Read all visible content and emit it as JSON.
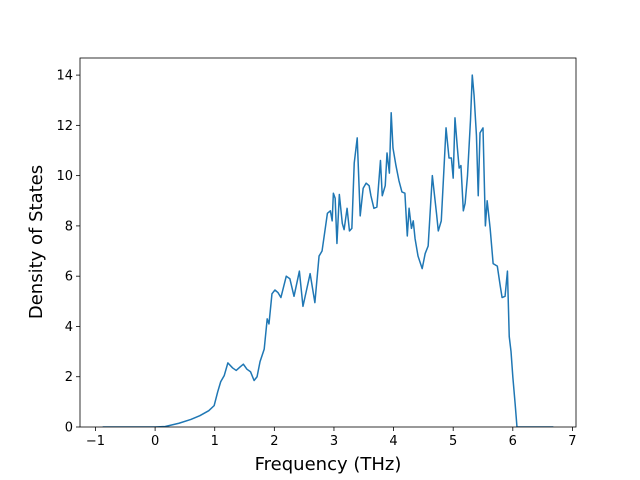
{
  "chart_data": {
    "type": "line",
    "xlabel": "Frequency (THz)",
    "ylabel": "Density of States",
    "xlim": [
      -1.26,
      7.06
    ],
    "ylim": [
      0,
      14.68
    ],
    "xticks": [
      {
        "value": -1,
        "label": "−1"
      },
      0,
      1,
      2,
      3,
      4,
      5,
      6,
      7
    ],
    "yticks": [
      0,
      2,
      4,
      6,
      8,
      10,
      12,
      14
    ],
    "grid": false,
    "x": [
      -0.88,
      0,
      0.17,
      0.4,
      0.6,
      0.75,
      0.9,
      0.99,
      1.05,
      1.1,
      1.16,
      1.22,
      1.3,
      1.36,
      1.43,
      1.48,
      1.54,
      1.6,
      1.66,
      1.71,
      1.76,
      1.83,
      1.88,
      1.91,
      1.96,
      2.01,
      2.06,
      2.11,
      2.2,
      2.26,
      2.33,
      2.42,
      2.48,
      2.6,
      2.68,
      2.75,
      2.8,
      2.89,
      2.94,
      2.97,
      2.99,
      3.02,
      3.05,
      3.09,
      3.14,
      3.17,
      3.22,
      3.26,
      3.3,
      3.34,
      3.39,
      3.44,
      3.49,
      3.54,
      3.59,
      3.62,
      3.67,
      3.72,
      3.78,
      3.81,
      3.86,
      3.89,
      3.93,
      3.96,
      3.99,
      4.04,
      4.09,
      4.14,
      4.19,
      4.23,
      4.26,
      4.3,
      4.33,
      4.36,
      4.41,
      4.48,
      4.53,
      4.58,
      4.65,
      4.72,
      4.75,
      4.8,
      4.85,
      4.88,
      4.93,
      4.97,
      5.0,
      5.03,
      5.07,
      5.1,
      5.13,
      5.17,
      5.2,
      5.24,
      5.29,
      5.32,
      5.35,
      5.39,
      5.42,
      5.45,
      5.5,
      5.54,
      5.57,
      5.62,
      5.67,
      5.74,
      5.79,
      5.82,
      5.87,
      5.91,
      5.94,
      5.97,
      6.0,
      6.04,
      6.07,
      6.68
    ],
    "series": [
      {
        "color": "#1f77b4",
        "values": [
          0,
          0,
          0.02,
          0.15,
          0.3,
          0.45,
          0.65,
          0.85,
          1.4,
          1.8,
          2.05,
          2.55,
          2.35,
          2.25,
          2.4,
          2.5,
          2.3,
          2.2,
          1.85,
          2.0,
          2.6,
          3.1,
          4.3,
          4.1,
          5.3,
          5.45,
          5.35,
          5.15,
          6.0,
          5.9,
          5.2,
          6.2,
          4.8,
          6.1,
          4.95,
          6.8,
          7.0,
          8.5,
          8.6,
          8.2,
          9.3,
          9.1,
          7.3,
          9.25,
          8.1,
          7.85,
          8.7,
          7.8,
          7.9,
          10.5,
          11.5,
          8.4,
          9.5,
          9.7,
          9.6,
          9.2,
          8.7,
          8.75,
          10.6,
          9.2,
          9.6,
          10.9,
          10.1,
          12.5,
          11.1,
          10.4,
          9.8,
          9.35,
          9.3,
          7.6,
          8.7,
          7.9,
          8.2,
          7.5,
          6.8,
          6.3,
          6.9,
          7.2,
          10.0,
          8.5,
          7.8,
          8.2,
          10.5,
          11.9,
          10.7,
          10.7,
          9.9,
          12.3,
          11.1,
          10.3,
          10.4,
          8.6,
          8.9,
          10.0,
          12.2,
          14.0,
          13.2,
          11.6,
          9.2,
          11.7,
          11.9,
          8.0,
          9.0,
          7.9,
          6.5,
          6.4,
          5.6,
          5.15,
          5.2,
          6.2,
          3.6,
          3.0,
          2.0,
          0.9,
          0,
          0
        ]
      }
    ]
  }
}
